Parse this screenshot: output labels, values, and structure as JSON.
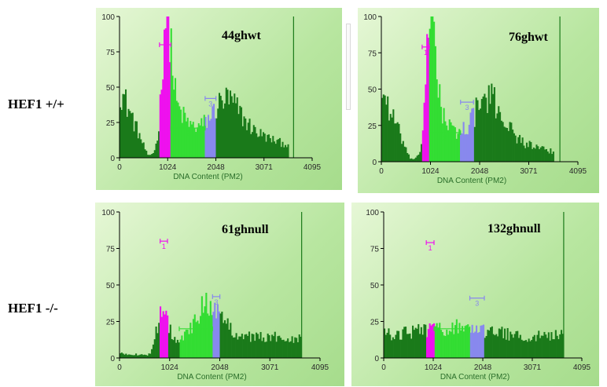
{
  "row_labels": {
    "top": "HEF1 +/+",
    "bottom": "HEF1 -/-"
  },
  "colors": {
    "panel_bg": "#b8e6a0",
    "dark_green": "#1a7a1a",
    "light_green": "#33dd33",
    "magenta": "#ee11ee",
    "blue": "#8888ee",
    "axis": "#000000",
    "tick_text": "#2a2a2a",
    "axis_label": "#2a6e2a"
  },
  "chart_data": [
    {
      "id": "44ghwt",
      "type": "area",
      "title": "44ghwt",
      "xlabel": "DNA Content (PM2)",
      "ylabel": "",
      "xlim": [
        0,
        4095
      ],
      "ylim": [
        0,
        100
      ],
      "xticks": [
        "0",
        "1024",
        "2048",
        "3071",
        "4095"
      ],
      "yticks": [
        "0",
        "25",
        "50",
        "75",
        "100"
      ],
      "regions": [
        {
          "name": "1",
          "color": "magenta",
          "x": [
            850,
            1090
          ],
          "marker_y": 80
        },
        {
          "name": "2",
          "color": "light_green",
          "x": [
            1090,
            1820
          ],
          "marker_y": 21
        },
        {
          "name": "3",
          "color": "blue",
          "x": [
            1820,
            2050
          ],
          "marker_y": 42
        }
      ],
      "right_marker_x": 3700,
      "peaks": [
        {
          "x": 1000,
          "sd": 95,
          "amp": 87
        },
        {
          "x": 1200,
          "sd": 180,
          "amp": 20
        },
        {
          "x": 1600,
          "sd": 300,
          "amp": 10
        },
        {
          "x": 2250,
          "sd": 280,
          "amp": 26
        },
        {
          "x": 2700,
          "sd": 450,
          "amp": 10
        }
      ],
      "baseline": {
        "start": 50,
        "min": 1.5,
        "rise_end": 3,
        "after": 8
      },
      "trail_after": 3600
    },
    {
      "id": "76ghwt",
      "type": "area",
      "title": "76ghwt",
      "xlabel": "DNA Content (PM2)",
      "ylabel": "",
      "xlim": [
        0,
        4095
      ],
      "ylim": [
        0,
        100
      ],
      "xticks": [
        "0",
        "1024",
        "2048",
        "3071",
        "4095"
      ],
      "yticks": [
        "0",
        "25",
        "50",
        "75",
        "100"
      ],
      "regions": [
        {
          "name": "1",
          "color": "magenta",
          "x": [
            850,
            1000
          ],
          "marker_y": 79
        },
        {
          "name": "2",
          "color": "light_green",
          "x": [
            1000,
            1650
          ],
          "marker_y": 20
        },
        {
          "name": "3",
          "color": "blue",
          "x": [
            1650,
            1920
          ],
          "marker_y": 41
        }
      ],
      "right_marker_x": 3720,
      "peaks": [
        {
          "x": 1040,
          "sd": 95,
          "amp": 88
        },
        {
          "x": 1200,
          "sd": 170,
          "amp": 18
        },
        {
          "x": 1500,
          "sd": 280,
          "amp": 9
        },
        {
          "x": 2200,
          "sd": 300,
          "amp": 32
        },
        {
          "x": 2650,
          "sd": 450,
          "amp": 8
        }
      ],
      "baseline": {
        "start": 50,
        "min": 1.5,
        "rise_end": 3,
        "after": 6
      },
      "trail_after": 3600
    },
    {
      "id": "61ghnull",
      "type": "area",
      "title": "61ghnull",
      "xlabel": "DNA Content (PM2)",
      "ylabel": "",
      "xlim": [
        0,
        4095
      ],
      "ylim": [
        0,
        100
      ],
      "xticks": [
        "0",
        "1024",
        "2048",
        "3071",
        "4095"
      ],
      "yticks": [
        "0",
        "25",
        "50",
        "75",
        "100"
      ],
      "regions": [
        {
          "name": "1",
          "color": "magenta",
          "x": [
            830,
            980
          ],
          "marker_y": 80
        },
        {
          "name": "2",
          "color": "light_green",
          "x": [
            1220,
            1900
          ],
          "marker_y": 20
        },
        {
          "name": "3",
          "color": "blue",
          "x": [
            1900,
            2050
          ],
          "marker_y": 42
        }
      ],
      "right_marker_x": 3720,
      "peaks": [
        {
          "x": 860,
          "sd": 90,
          "amp": 32
        },
        {
          "x": 1800,
          "sd": 200,
          "amp": 20
        },
        {
          "x": 2050,
          "sd": 300,
          "amp": 6
        }
      ],
      "baseline": {
        "start": 3,
        "min": 2,
        "rise_end": 3,
        "after": 14
      },
      "trail_after": 3720
    },
    {
      "id": "132ghnull",
      "type": "area",
      "title": "132ghnull",
      "xlabel": "DNA Content (PM2)",
      "ylabel": "",
      "xlim": [
        0,
        4095
      ],
      "ylim": [
        0,
        100
      ],
      "xticks": [
        "0",
        "1024",
        "2048",
        "3071",
        "4095"
      ],
      "yticks": [
        "0",
        "25",
        "50",
        "75",
        "100"
      ],
      "regions": [
        {
          "name": "1",
          "color": "magenta",
          "x": [
            880,
            1040
          ],
          "marker_y": 79
        },
        {
          "name": "2",
          "color": "light_green",
          "x": [
            1040,
            1780
          ],
          "marker_y": 20
        },
        {
          "name": "3",
          "color": "blue",
          "x": [
            1780,
            2080
          ],
          "marker_y": 41
        }
      ],
      "right_marker_x": 3720,
      "peaks": [
        {
          "x": 1500,
          "sd": 600,
          "amp": 6
        }
      ],
      "baseline": {
        "start": 16,
        "min": 16,
        "rise_end": 16,
        "after": 15
      },
      "trail_after": 3720
    }
  ]
}
